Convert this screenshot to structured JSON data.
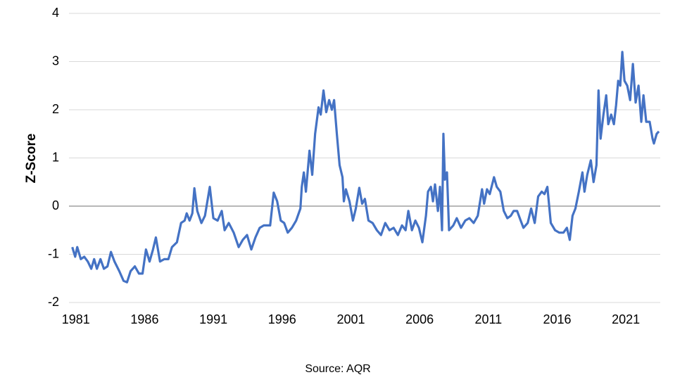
{
  "chart_data": {
    "type": "line",
    "y_label": "Z-Score",
    "source": "Source: AQR",
    "xlim": [
      1980.5,
      2023.5
    ],
    "xticks": [
      1981,
      1986,
      1991,
      1996,
      2001,
      2006,
      2011,
      2016,
      2021
    ],
    "ylim": [
      -2,
      4
    ],
    "yticks": [
      -2,
      -1,
      0,
      1,
      2,
      3,
      4
    ],
    "grid": true,
    "x": [
      1980.74,
      1980.95,
      1981.1,
      1981.36,
      1981.61,
      1981.87,
      1982.12,
      1982.33,
      1982.53,
      1982.79,
      1983.04,
      1983.3,
      1983.55,
      1983.81,
      1984.16,
      1984.47,
      1984.72,
      1984.98,
      1985.29,
      1985.59,
      1985.85,
      1986.1,
      1986.36,
      1986.61,
      1986.82,
      1987.12,
      1987.43,
      1987.73,
      1987.99,
      1988.35,
      1988.65,
      1988.91,
      1989.06,
      1989.27,
      1989.47,
      1989.62,
      1989.83,
      1990.13,
      1990.39,
      1990.74,
      1991.0,
      1991.31,
      1991.61,
      1991.82,
      1992.12,
      1992.48,
      1992.84,
      1993.14,
      1993.45,
      1993.76,
      1994.06,
      1994.37,
      1994.67,
      1995.13,
      1995.39,
      1995.64,
      1995.9,
      1996.15,
      1996.41,
      1996.71,
      1997.02,
      1997.33,
      1997.43,
      1997.58,
      1997.73,
      1997.99,
      1998.19,
      1998.4,
      1998.65,
      1998.81,
      1999.01,
      1999.21,
      1999.42,
      1999.62,
      1999.78,
      1999.98,
      2000.18,
      2000.39,
      2000.49,
      2000.64,
      2000.9,
      2001.15,
      2001.36,
      2001.61,
      2001.82,
      2002.02,
      2002.28,
      2002.58,
      2002.89,
      2003.19,
      2003.5,
      2003.81,
      2004.11,
      2004.42,
      2004.72,
      2004.98,
      2005.18,
      2005.44,
      2005.69,
      2005.95,
      2006.2,
      2006.46,
      2006.61,
      2006.82,
      2006.97,
      2007.12,
      2007.33,
      2007.48,
      2007.63,
      2007.73,
      2007.84,
      2007.99,
      2008.14,
      2008.45,
      2008.7,
      2009.01,
      2009.32,
      2009.62,
      2009.93,
      2010.23,
      2010.54,
      2010.69,
      2010.9,
      2011.1,
      2011.41,
      2011.61,
      2011.87,
      2012.12,
      2012.38,
      2012.63,
      2012.84,
      2013.09,
      2013.35,
      2013.55,
      2013.86,
      2014.11,
      2014.37,
      2014.62,
      2014.88,
      2015.08,
      2015.29,
      2015.54,
      2015.85,
      2016.15,
      2016.46,
      2016.71,
      2016.92,
      2017.12,
      2017.33,
      2017.58,
      2017.84,
      2017.99,
      2018.19,
      2018.45,
      2018.65,
      2018.86,
      2019.01,
      2019.16,
      2019.37,
      2019.57,
      2019.72,
      2019.93,
      2020.13,
      2020.29,
      2020.44,
      2020.59,
      2020.74,
      2020.9,
      2021.1,
      2021.31,
      2021.51,
      2021.71,
      2021.92,
      2022.12,
      2022.28,
      2022.48,
      2022.73,
      2022.94,
      2023.04,
      2023.24,
      2023.4
    ],
    "series": [
      {
        "color": "#4472c4",
        "values": [
          -0.85,
          -1.05,
          -0.85,
          -1.1,
          -1.05,
          -1.15,
          -1.3,
          -1.1,
          -1.3,
          -1.1,
          -1.3,
          -1.25,
          -0.95,
          -1.15,
          -1.35,
          -1.55,
          -1.58,
          -1.35,
          -1.25,
          -1.4,
          -1.4,
          -0.9,
          -1.15,
          -0.9,
          -0.65,
          -1.15,
          -1.1,
          -1.1,
          -0.85,
          -0.75,
          -0.35,
          -0.3,
          -0.15,
          -0.3,
          -0.15,
          0.37,
          -0.1,
          -0.35,
          -0.2,
          0.4,
          -0.25,
          -0.3,
          -0.1,
          -0.5,
          -0.35,
          -0.55,
          -0.85,
          -0.7,
          -0.6,
          -0.9,
          -0.65,
          -0.45,
          -0.4,
          -0.4,
          0.28,
          0.1,
          -0.3,
          -0.35,
          -0.55,
          -0.45,
          -0.3,
          -0.05,
          0.4,
          0.7,
          0.3,
          1.15,
          0.65,
          1.5,
          2.05,
          1.9,
          2.4,
          1.95,
          2.2,
          2.0,
          2.2,
          1.5,
          0.85,
          0.6,
          0.1,
          0.35,
          0.1,
          -0.3,
          -0.05,
          0.38,
          0.05,
          0.15,
          -0.3,
          -0.35,
          -0.5,
          -0.6,
          -0.35,
          -0.5,
          -0.45,
          -0.6,
          -0.4,
          -0.5,
          -0.1,
          -0.5,
          -0.3,
          -0.45,
          -0.75,
          -0.2,
          0.3,
          0.4,
          0.1,
          0.45,
          -0.1,
          0.4,
          -0.5,
          1.5,
          0.55,
          0.7,
          -0.5,
          -0.4,
          -0.25,
          -0.45,
          -0.3,
          -0.25,
          -0.35,
          -0.2,
          0.35,
          0.05,
          0.35,
          0.25,
          0.6,
          0.4,
          0.3,
          -0.1,
          -0.25,
          -0.2,
          -0.1,
          -0.1,
          -0.3,
          -0.45,
          -0.35,
          -0.05,
          -0.35,
          0.2,
          0.3,
          0.25,
          0.4,
          -0.35,
          -0.5,
          -0.55,
          -0.55,
          -0.45,
          -0.7,
          -0.2,
          -0.05,
          0.3,
          0.7,
          0.3,
          0.65,
          0.95,
          0.5,
          0.85,
          2.4,
          1.4,
          1.9,
          2.3,
          1.7,
          1.9,
          1.7,
          2.1,
          2.6,
          2.5,
          3.2,
          2.6,
          2.5,
          2.2,
          2.95,
          2.15,
          2.5,
          1.75,
          2.3,
          1.75,
          1.75,
          1.4,
          1.3,
          1.5,
          1.55
        ]
      }
    ]
  }
}
